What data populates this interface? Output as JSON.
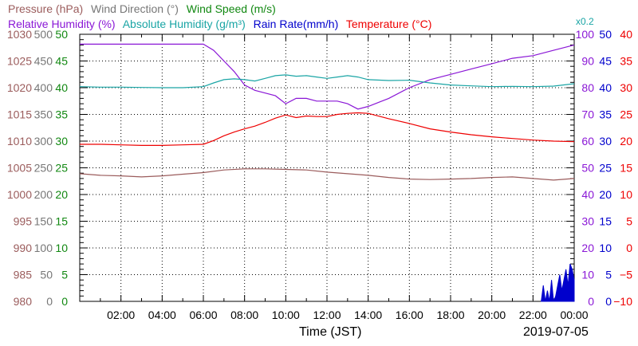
{
  "chart_data": {
    "type": "line",
    "xlabel": "Time (JST)",
    "date_label": "2019-07-05",
    "x_tick_labels": [
      "02:00",
      "04:00",
      "06:00",
      "08:00",
      "10:00",
      "12:00",
      "14:00",
      "16:00",
      "18:00",
      "20:00",
      "22:00",
      "00:00"
    ],
    "legend": {
      "pressure": "Pressure (hPa)",
      "wind_direction": "Wind Direction (°)",
      "wind_speed": "Wind Speed (m/s)",
      "relative_humidity": "Relative Humidity (%)",
      "absolute_humidity": "Absolute Humidity (g/m³)",
      "rain_rate": "Rain Rate(mm/h)",
      "temperature": "Temperature (°C)",
      "absolute_humidity_scale_note": "x0.2"
    },
    "axes": {
      "pressure": {
        "ticks": [
          "980",
          "985",
          "990",
          "995",
          "1000",
          "1005",
          "1010",
          "1015",
          "1020",
          "1025",
          "1030"
        ],
        "color": "#9b5c5c",
        "ylim": [
          980,
          1030
        ]
      },
      "wind_direction": {
        "ticks": [
          "0",
          "50",
          "100",
          "150",
          "200",
          "250",
          "300",
          "350",
          "400",
          "450",
          "500"
        ],
        "color": "#777777",
        "ylim": [
          0,
          500
        ]
      },
      "wind_speed": {
        "ticks": [
          "0",
          "5",
          "10",
          "15",
          "20",
          "25",
          "30",
          "35",
          "40",
          "45",
          "50"
        ],
        "color": "#118811",
        "ylim": [
          0,
          50
        ]
      },
      "relative_humidity": {
        "ticks": [
          "0",
          "10",
          "20",
          "30",
          "40",
          "50",
          "60",
          "70",
          "80",
          "90",
          "100"
        ],
        "color": "#8a17d6",
        "ylim": [
          0,
          100
        ]
      },
      "rain_rate": {
        "ticks": [
          "0",
          "5",
          "10",
          "15",
          "20",
          "25",
          "30",
          "35",
          "40",
          "45",
          "50"
        ],
        "color": "#0000cc",
        "ylim": [
          0,
          50
        ]
      },
      "temperature": {
        "ticks": [
          "−10",
          "−5",
          "0",
          "5",
          "10",
          "15",
          "20",
          "25",
          "30",
          "35",
          "40"
        ],
        "color": "#ee0000",
        "ylim": [
          -10,
          40
        ]
      }
    },
    "series": [
      {
        "name": "Pressure (hPa)",
        "axis": "pressure",
        "color": "#9b5c5c",
        "x": [
          0,
          1,
          2,
          3,
          4,
          5,
          6,
          7,
          8,
          9,
          10,
          11,
          12,
          13,
          14,
          15,
          16,
          17,
          18,
          19,
          20,
          21,
          22,
          23,
          24
        ],
        "y": [
          1003.9,
          1003.6,
          1003.5,
          1003.3,
          1003.5,
          1003.8,
          1004.1,
          1004.6,
          1004.8,
          1004.8,
          1004.7,
          1004.6,
          1004.2,
          1003.9,
          1003.6,
          1003.2,
          1002.9,
          1002.8,
          1002.9,
          1003.0,
          1003.2,
          1003.3,
          1003.0,
          1002.7,
          1003.0
        ]
      },
      {
        "name": "Relative Humidity (%)",
        "axis": "relative_humidity",
        "color": "#8a17d6",
        "x": [
          0,
          1,
          2,
          3,
          4,
          5,
          6,
          6.5,
          7,
          7.5,
          8,
          8.5,
          9,
          9.5,
          10,
          10.5,
          11,
          11.5,
          12,
          12.5,
          13,
          13.5,
          14,
          15,
          16,
          17,
          18,
          19,
          20,
          21,
          22,
          23,
          24
        ],
        "y": [
          96.3,
          96.3,
          96.3,
          96.3,
          96.3,
          96.3,
          96.3,
          94,
          90,
          86,
          81,
          79,
          78,
          77,
          74,
          76,
          76,
          75,
          75,
          75,
          74,
          72,
          73,
          76,
          80,
          83,
          85,
          87,
          89,
          91,
          92,
          94,
          96
        ]
      },
      {
        "name": "Absolute Humidity (g/m³) x0.2",
        "axis": "relative_humidity",
        "color": "#1aa5a5",
        "x": [
          0,
          1,
          2,
          3,
          4,
          5,
          6,
          6.5,
          7,
          7.5,
          8,
          8.5,
          9,
          9.5,
          10,
          10.5,
          11,
          11.5,
          12,
          12.5,
          13,
          13.5,
          14,
          15,
          16,
          17,
          18,
          19,
          20,
          21,
          22,
          23,
          24
        ],
        "y": [
          80.4,
          80.2,
          80.2,
          80.1,
          80.0,
          80.0,
          80.4,
          81.8,
          83,
          83.3,
          83,
          82.5,
          83.5,
          84.5,
          84.8,
          84.3,
          84.5,
          84,
          83.5,
          84,
          84.5,
          84,
          83,
          82.7,
          82.8,
          81.8,
          81,
          80.7,
          80.4,
          80.5,
          80.4,
          80.6,
          81.5
        ]
      },
      {
        "name": "Temperature (°C)",
        "axis": "temperature",
        "color": "#ee0000",
        "x": [
          0,
          1,
          2,
          3,
          4,
          5,
          6,
          6.5,
          7,
          7.5,
          8,
          8.5,
          9,
          9.5,
          10,
          10.5,
          11,
          11.5,
          12,
          12.5,
          13,
          13.5,
          14,
          15,
          16,
          17,
          18,
          19,
          20,
          21,
          22,
          23,
          24
        ],
        "y": [
          19.4,
          19.4,
          19.3,
          19.2,
          19.2,
          19.3,
          19.4,
          20.1,
          21.0,
          21.7,
          22.3,
          22.8,
          23.5,
          24.3,
          24.9,
          24.4,
          24.7,
          24.6,
          24.6,
          25.0,
          25.2,
          25.3,
          25.2,
          24.2,
          23.3,
          22.3,
          21.7,
          21.2,
          20.8,
          20.5,
          20.2,
          20.0,
          19.9
        ]
      },
      {
        "name": "Rain Rate(mm/h)",
        "axis": "rain_rate",
        "color": "#0000cc",
        "x": [
          22.4,
          22.5,
          22.6,
          22.7,
          22.8,
          22.9,
          23.0,
          23.1,
          23.2,
          23.3,
          23.4,
          23.5,
          23.6,
          23.7,
          23.8,
          23.9,
          24.0
        ],
        "y": [
          0,
          3,
          0,
          2,
          0,
          4,
          0,
          1,
          3,
          5,
          2,
          4,
          6,
          3,
          7,
          6,
          4
        ]
      }
    ]
  }
}
